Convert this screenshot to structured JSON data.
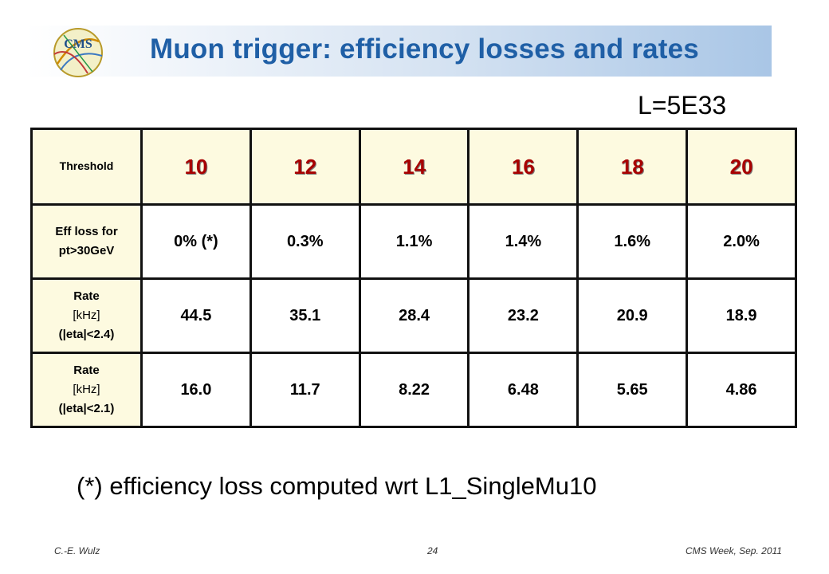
{
  "slide": {
    "title": "Muon trigger: efficiency losses and rates",
    "luminosity": "L=5E33",
    "footnote": "(*) efficiency loss computed wrt L1_SingleMu10"
  },
  "logo": {
    "text": "CMS",
    "icon": "cms-logo-icon"
  },
  "table": {
    "corner_label": "Threshold",
    "thresholds": [
      "10",
      "12",
      "14",
      "16",
      "18",
      "20"
    ],
    "rows": [
      {
        "label_lines": [
          "Eff loss for",
          "pt>30GeV"
        ],
        "unit": "",
        "values": [
          "0% (*)",
          "0.3%",
          "1.1%",
          "1.4%",
          "1.6%",
          "2.0%"
        ]
      },
      {
        "label_lines": [
          "Rate",
          "(|eta|<2.4)"
        ],
        "unit": "[kHz]",
        "values": [
          "44.5",
          "35.1",
          "28.4",
          "23.2",
          "20.9",
          "18.9"
        ]
      },
      {
        "label_lines": [
          "Rate",
          "(|eta|<2.1)"
        ],
        "unit": "[kHz]",
        "values": [
          "16.0",
          "11.7",
          "8.22",
          "6.48",
          "5.65",
          "4.86"
        ]
      }
    ]
  },
  "footer": {
    "author": "C.-E. Wulz",
    "page": "24",
    "event": "CMS Week, Sep. 2011"
  },
  "colors": {
    "title": "#1f5fa6",
    "threshold_text": "#a80000",
    "header_bg": "#fdfae0"
  }
}
